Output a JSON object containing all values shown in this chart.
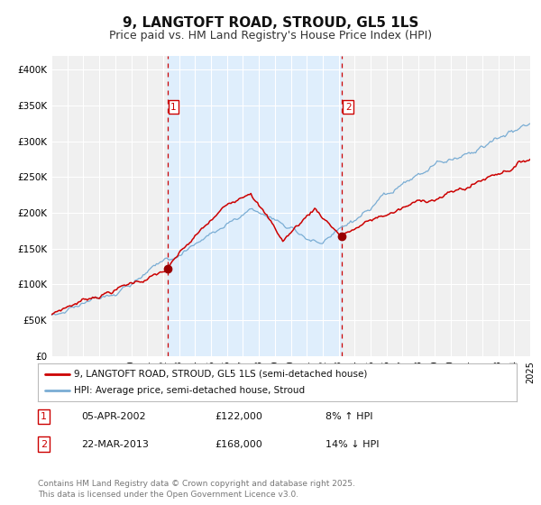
{
  "title": "9, LANGTOFT ROAD, STROUD, GL5 1LS",
  "subtitle": "Price paid vs. HM Land Registry's House Price Index (HPI)",
  "background_color": "#ffffff",
  "plot_bg_color": "#f0f0f0",
  "grid_color": "#ffffff",
  "ylim": [
    0,
    420000
  ],
  "yticks": [
    0,
    50000,
    100000,
    150000,
    200000,
    250000,
    300000,
    350000,
    400000
  ],
  "ytick_labels": [
    "£0",
    "£50K",
    "£100K",
    "£150K",
    "£200K",
    "£250K",
    "£300K",
    "£350K",
    "£400K"
  ],
  "x_start_year": 1995,
  "x_end_year": 2025,
  "sale1_date": 2002.27,
  "sale1_price": 122000,
  "sale2_date": 2013.22,
  "sale2_price": 168000,
  "sale1_hpi_pct": "8%",
  "sale1_hpi_dir": "↑",
  "sale1_date_str": "05-APR-2002",
  "sale2_hpi_pct": "14%",
  "sale2_hpi_dir": "↓",
  "sale2_date_str": "22-MAR-2013",
  "red_line_color": "#cc0000",
  "blue_line_color": "#7aadd4",
  "shade_color": "#ddeeff",
  "vline_color": "#cc0000",
  "dot_color": "#990000",
  "legend_label_red": "9, LANGTOFT ROAD, STROUD, GL5 1LS (semi-detached house)",
  "legend_label_blue": "HPI: Average price, semi-detached house, Stroud",
  "footer": "Contains HM Land Registry data © Crown copyright and database right 2025.\nThis data is licensed under the Open Government Licence v3.0.",
  "title_fontsize": 11,
  "subtitle_fontsize": 9,
  "tick_fontsize": 7.5,
  "legend_fontsize": 8,
  "footer_fontsize": 6.5
}
